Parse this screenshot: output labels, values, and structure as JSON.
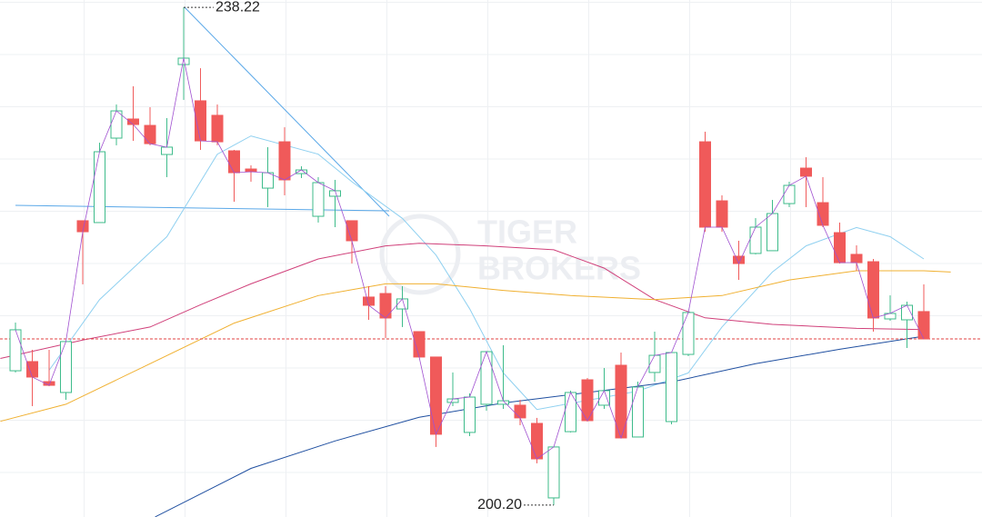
{
  "chart_data": {
    "type": "candlestick",
    "watermark": [
      "TIGER",
      "BROKERS"
    ],
    "xlim": [
      -0.92,
      57.46
    ],
    "ylim": [
      199.29,
      238.78
    ],
    "up_color": "#3dbb8a",
    "down_color": "#f05a5a",
    "close_line_color": "#a050d0",
    "last_price_color": "#e04040",
    "open": [
      210.46,
      211.16,
      209.63,
      208.8,
      221.92,
      221.78,
      228.23,
      229.69,
      229.2,
      226.98,
      233.85,
      231.08,
      229.97,
      227.26,
      225.87,
      224.41,
      227.95,
      225.52,
      222.26,
      223.79,
      221.92,
      216.09,
      216.36,
      215.18,
      213.45,
      211.51,
      208.04,
      205.75,
      207.9,
      207.9,
      207.83,
      206.44,
      200.75,
      205.81,
      209.77,
      207.83,
      210.88,
      205.4,
      210.33,
      206.58,
      211.71,
      227.95,
      223.44,
      219.21,
      219.42,
      219.63,
      223.23,
      225.94,
      223.3,
      221.01,
      219.35,
      218.79,
      214.42,
      214.35,
      214.98
    ],
    "high": [
      214.14,
      212.06,
      212.06,
      212.69,
      221.92,
      227.88,
      230.8,
      232.19,
      230.59,
      229.76,
      238.22,
      233.57,
      230.8,
      227.33,
      226.15,
      227.54,
      229.06,
      226.08,
      225.25,
      225.04,
      221.92,
      216.92,
      216.92,
      216.92,
      213.45,
      211.51,
      210.33,
      208.73,
      211.92,
      212.41,
      208.24,
      206.86,
      204.64,
      208.94,
      209.91,
      210.67,
      211.85,
      209.63,
      213.45,
      211.85,
      214.91,
      228.72,
      223.86,
      220.39,
      222.12,
      223.51,
      224.9,
      226.77,
      225.25,
      221.78,
      220.04,
      219.0,
      216.22,
      215.74,
      217.06
    ],
    "low": [
      210.33,
      207.76,
      209.28,
      208.24,
      217.06,
      221.78,
      227.68,
      228.02,
      227.68,
      225.25,
      231.15,
      227.33,
      227.68,
      223.37,
      224.9,
      222.96,
      223.86,
      225.18,
      221.78,
      221.43,
      218.65,
      214.35,
      212.96,
      213.8,
      211.51,
      204.64,
      207.76,
      205.47,
      207.41,
      207.55,
      206.3,
      203.39,
      200.2,
      205.75,
      206.58,
      207.55,
      205.33,
      205.4,
      209.63,
      206.37,
      211.58,
      221.08,
      221.08,
      217.4,
      219.35,
      219.63,
      222.96,
      222.96,
      221.43,
      218.65,
      218.1,
      213.45,
      214.28,
      212.2,
      212.89
    ],
    "close": [
      213.59,
      209.98,
      209.35,
      212.69,
      221.08,
      227.19,
      230.31,
      229.27,
      227.81,
      227.54,
      234.34,
      228.02,
      227.95,
      225.59,
      225.66,
      225.59,
      225.04,
      225.8,
      224.83,
      224.21,
      220.39,
      215.46,
      214.49,
      215.95,
      211.51,
      205.61,
      208.31,
      208.45,
      211.92,
      208.17,
      206.86,
      203.73,
      204.64,
      208.8,
      206.65,
      208.94,
      205.33,
      209.22,
      211.64,
      211.85,
      214.91,
      221.43,
      221.43,
      218.65,
      221.43,
      222.47,
      224.62,
      225.32,
      221.57,
      218.72,
      218.72,
      214.49,
      214.84,
      215.46,
      212.89
    ],
    "max_label": 238.22,
    "min_label": {
      "value": 200.2,
      "label": "200.20"
    },
    "lines": [
      {
        "color": "#8fd0f0",
        "x": [
          2,
          5,
          9,
          12,
          14,
          18,
          20,
          23,
          25,
          27,
          29,
          31,
          34,
          37,
          40,
          42,
          45,
          47,
          50,
          52,
          54
        ],
        "values": [
          210.5,
          215.9,
          220.7,
          227.0,
          228.4,
          227.0,
          224.9,
          222.1,
          219.3,
          215.2,
          210.3,
          207.5,
          208.2,
          208.9,
          210.3,
          213.8,
          218.0,
          220.0,
          221.4,
          220.7,
          219.0
        ]
      },
      {
        "color": "#d0407a",
        "x": [
          -0.9,
          4,
          8,
          11,
          14,
          18,
          22,
          24,
          28,
          32,
          35,
          38,
          41,
          45,
          50,
          54
        ],
        "values": [
          211.4,
          212.8,
          213.8,
          215.5,
          217.1,
          219.0,
          220.0,
          220.2,
          220.0,
          219.7,
          218.3,
          215.9,
          214.5,
          214.0,
          213.7,
          213.6
        ]
      },
      {
        "color": "#f0b030",
        "x": [
          -0.9,
          3,
          8,
          13,
          18,
          22,
          25,
          29,
          33,
          38,
          42,
          46,
          50,
          54,
          55.6
        ],
        "values": [
          206.6,
          207.9,
          211.0,
          214.1,
          216.2,
          217.1,
          217.1,
          216.6,
          216.2,
          215.9,
          216.2,
          217.4,
          218.1,
          218.1,
          218.0
        ]
      },
      {
        "color": "#1f4fa0",
        "x": [
          8.3,
          14,
          19,
          24,
          29,
          34,
          39,
          44,
          49,
          54
        ],
        "values": [
          199.3,
          203.0,
          205.1,
          206.9,
          208.0,
          208.8,
          209.6,
          211.0,
          212.1,
          213.1
        ]
      }
    ]
  }
}
